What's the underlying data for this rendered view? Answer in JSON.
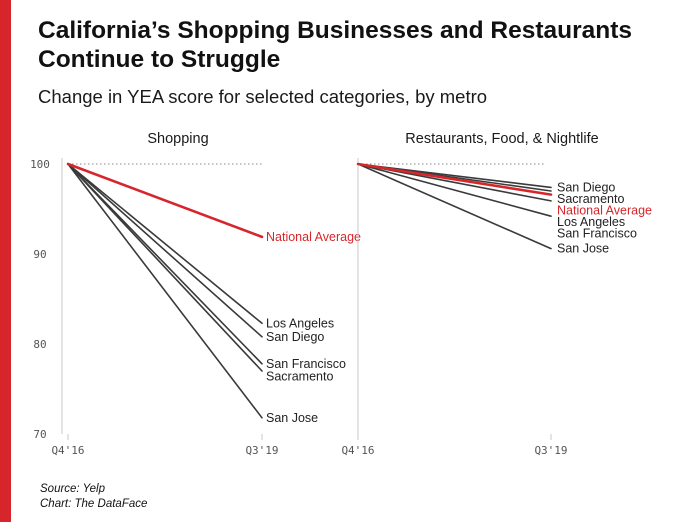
{
  "title": "California’s Shopping Businesses and Restaurants Continue to Struggle",
  "subtitle": "Change in YEA score for selected categories, by metro",
  "source": "Source: Yelp",
  "credit": "Chart: The DataFace",
  "colors": {
    "accent": "#d7262b",
    "series": "#3a3a3a",
    "highlight": "#d7262b",
    "axis": "#c8c8c8"
  },
  "chart_data": [
    {
      "type": "line",
      "title": "Shopping",
      "x": [
        "Q4'16",
        "Q3'19"
      ],
      "ylim": [
        70,
        100
      ],
      "yticks": [
        100,
        90,
        80,
        70
      ],
      "reference_line": 100,
      "series": [
        {
          "name": "National Average",
          "values": [
            100,
            91.9
          ],
          "highlight": true
        },
        {
          "name": "Los Angeles",
          "values": [
            100,
            82.3
          ]
        },
        {
          "name": "San Diego",
          "values": [
            100,
            80.8
          ]
        },
        {
          "name": "San Francisco",
          "values": [
            100,
            77.8
          ]
        },
        {
          "name": "Sacramento",
          "values": [
            100,
            77.0
          ]
        },
        {
          "name": "San Jose",
          "values": [
            100,
            71.8
          ]
        }
      ]
    },
    {
      "type": "line",
      "title": "Restaurants, Food, & Nightlife",
      "x": [
        "Q4'16",
        "Q3'19"
      ],
      "ylim": [
        70,
        100
      ],
      "reference_line": 100,
      "series": [
        {
          "name": "San Diego",
          "values": [
            100,
            97.4
          ]
        },
        {
          "name": "Sacramento",
          "values": [
            100,
            97.0
          ]
        },
        {
          "name": "National Average",
          "values": [
            100,
            96.6
          ],
          "highlight": true
        },
        {
          "name": "Los Angeles",
          "values": [
            100,
            95.9
          ]
        },
        {
          "name": "San Francisco",
          "values": [
            100,
            94.2
          ]
        },
        {
          "name": "San Jose",
          "values": [
            100,
            90.6
          ]
        }
      ]
    }
  ]
}
